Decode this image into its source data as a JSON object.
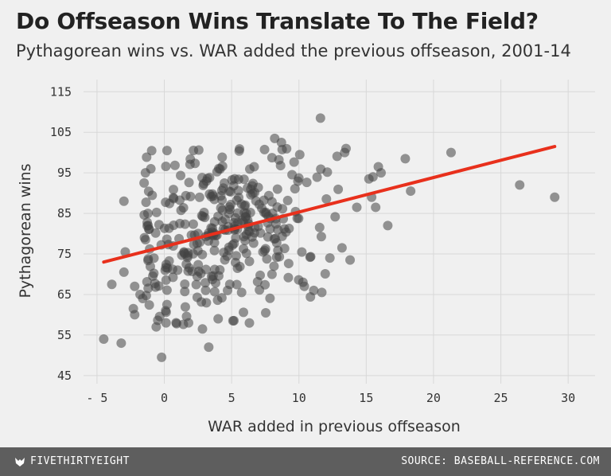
{
  "chart_data": {
    "type": "scatter",
    "title": "Do Offseason Wins Translate To The Field?",
    "subtitle": "Pythagorean wins vs. WAR added the previous offseason, 2001-14",
    "xlabel": "WAR added in previous offseason",
    "ylabel": "Pythagorean wins",
    "xlim": [
      -6,
      32
    ],
    "ylim": [
      43,
      118
    ],
    "xticks": [
      -5,
      0,
      5,
      10,
      15,
      20,
      25,
      30
    ],
    "xtick_labels": [
      "- 5",
      "0",
      "5",
      "10",
      "15",
      "20",
      "25",
      "30"
    ],
    "yticks": [
      45,
      55,
      65,
      75,
      85,
      95,
      105,
      115
    ],
    "grid": true,
    "point_color": "#444444",
    "trend_color": "#e8301c",
    "trendline": {
      "x": [
        -4.5,
        29
      ],
      "y": [
        73,
        101.5
      ]
    },
    "highlight_points": [
      {
        "x": -4.5,
        "y": 54
      },
      {
        "x": -3.2,
        "y": 53
      },
      {
        "x": -3,
        "y": 88
      },
      {
        "x": -3,
        "y": 70.5
      },
      {
        "x": -2.9,
        "y": 75.5
      },
      {
        "x": -3.9,
        "y": 67.5
      },
      {
        "x": -2.3,
        "y": 61.5
      },
      {
        "x": -2.2,
        "y": 60
      },
      {
        "x": -0.2,
        "y": 49.5
      },
      {
        "x": 3.3,
        "y": 52
      },
      {
        "x": 11.6,
        "y": 108.5
      },
      {
        "x": 8.2,
        "y": 103.5
      },
      {
        "x": 8.7,
        "y": 102.5
      },
      {
        "x": 0.2,
        "y": 100.5
      },
      {
        "x": 13.5,
        "y": 101
      },
      {
        "x": 13.4,
        "y": 100
      },
      {
        "x": 17.9,
        "y": 98.5
      },
      {
        "x": 21.3,
        "y": 100
      },
      {
        "x": 26.4,
        "y": 92
      },
      {
        "x": 29,
        "y": 89
      },
      {
        "x": 18.3,
        "y": 90.5
      },
      {
        "x": 16.6,
        "y": 82
      },
      {
        "x": 14.3,
        "y": 86.5
      },
      {
        "x": 15.7,
        "y": 86.5
      },
      {
        "x": 16.1,
        "y": 95
      },
      {
        "x": 15.9,
        "y": 96.5
      },
      {
        "x": 15.5,
        "y": 94
      },
      {
        "x": 15.2,
        "y": 93.5
      },
      {
        "x": 15.4,
        "y": 89
      },
      {
        "x": 13.8,
        "y": 73.5
      },
      {
        "x": 12.3,
        "y": 74
      },
      {
        "x": 13.2,
        "y": 76.5
      },
      {
        "x": 11.7,
        "y": 65.5
      },
      {
        "x": 11.1,
        "y": 66
      },
      {
        "x": 10.3,
        "y": 68
      },
      {
        "x": 10.4,
        "y": 67
      },
      {
        "x": -0.6,
        "y": 57
      },
      {
        "x": 1.8,
        "y": 58
      },
      {
        "x": 5.1,
        "y": 58.5
      },
      {
        "x": 4,
        "y": 59
      },
      {
        "x": 0.1,
        "y": 61
      },
      {
        "x": 0.2,
        "y": 62.5
      },
      {
        "x": -1.8,
        "y": 65
      },
      {
        "x": -1.6,
        "y": 64
      },
      {
        "x": -1.2,
        "y": 66.5
      },
      {
        "x": -2.2,
        "y": 67
      },
      {
        "x": -1.4,
        "y": 78.5
      },
      {
        "x": -1.2,
        "y": 82
      },
      {
        "x": -1.5,
        "y": 92.5
      },
      {
        "x": -1.4,
        "y": 95
      },
      {
        "x": -1.0,
        "y": 96
      }
    ]
  },
  "footer": {
    "brand": "FIVETHIRTYEIGHT",
    "source": "SOURCE: BASEBALL-REFERENCE.COM"
  }
}
